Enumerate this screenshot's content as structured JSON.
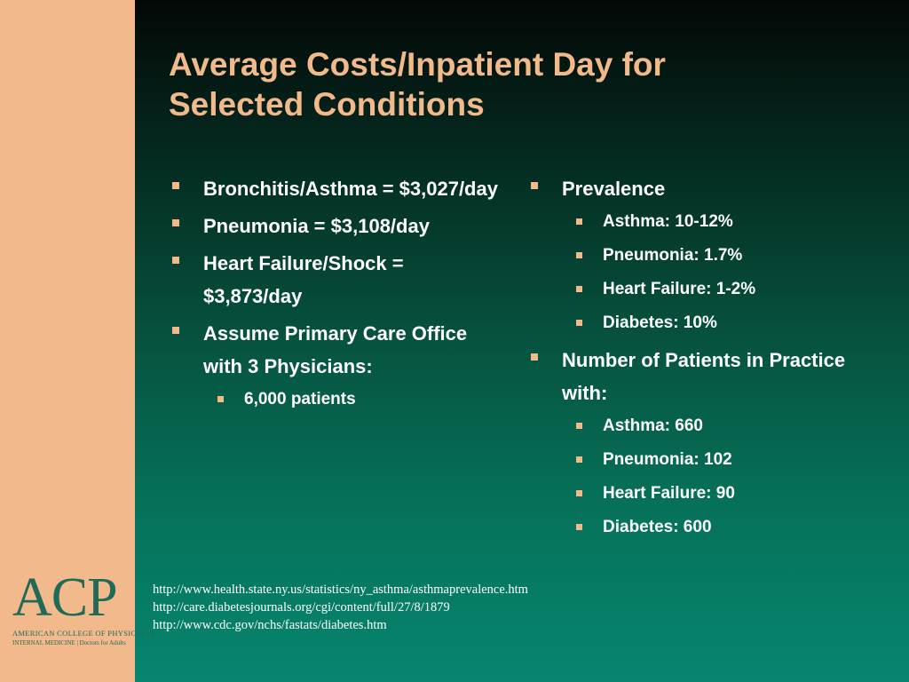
{
  "slide": {
    "title_line1": "Average Costs/Inpatient Day for",
    "title_line2": "Selected Conditions"
  },
  "left_column": {
    "items": [
      {
        "label": "Bronchitis/Asthma = $3,027/day"
      },
      {
        "label": "Pneumonia = $3,108/day"
      },
      {
        "label": "Heart Failure/Shock = $3,873/day"
      },
      {
        "label": "Assume Primary Care Office with 3 Physicians:",
        "subitems": [
          "6,000 patients"
        ]
      }
    ]
  },
  "right_column": {
    "items": [
      {
        "label": "Prevalence",
        "subitems": [
          "Asthma: 10-12%",
          "Pneumonia: 1.7%",
          "Heart Failure: 1-2%",
          "Diabetes: 10%"
        ]
      },
      {
        "label": "Number of Patients in Practice with:",
        "subitems": [
          "Asthma: 660",
          "Pneumonia: 102",
          "Heart Failure: 90",
          "Diabetes: 600"
        ]
      }
    ]
  },
  "references": [
    "http://www.health.state.ny.us/statistics/ny_asthma/asthmaprevalence.htm",
    "http://care.diabetesjournals.org/cgi/content/full/27/8/1879",
    "http://www.cdc.gov/nchs/fastats/diabetes.htm"
  ],
  "logo": {
    "mark": "ACP",
    "line1": "AMERICAN COLLEGE OF PHYSICIANS",
    "line2": "INTERNAL MEDICINE | Doctors for Adults"
  },
  "colors": {
    "sidebar": "#f1b98c",
    "title": "#f2b98b",
    "bullet": "#f2b98b",
    "background_top": "#030806",
    "background_bottom": "#078570",
    "logo": "#1f6b57"
  }
}
